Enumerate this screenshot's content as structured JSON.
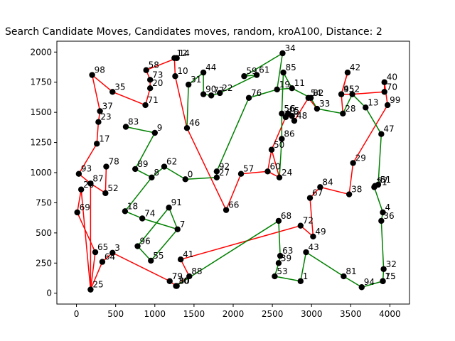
{
  "chart_data": {
    "type": "scatter",
    "title": "Search Candidate Moves, Candidates moves, random, kroA100, Distance: 2",
    "xlabel": "",
    "ylabel": "",
    "xlim": [
      -250,
      4250
    ],
    "ylim": [
      -90,
      2090
    ],
    "xticks": [
      0,
      500,
      1000,
      1500,
      2000,
      2500,
      3000,
      3500,
      4000
    ],
    "yticks": [
      0,
      250,
      500,
      750,
      1000,
      1250,
      1500,
      1750,
      2000
    ],
    "grid": false,
    "legend": "none",
    "colors": {
      "cycle_a": "#ff0000",
      "cycle_b": "#008000",
      "node": "#000000"
    },
    "points": [
      {
        "id": "0",
        "x": 1390,
        "y": 945
      },
      {
        "id": "1",
        "x": 2860,
        "y": 100
      },
      {
        "id": "2",
        "x": 3520,
        "y": 1650
      },
      {
        "id": "3",
        "x": 460,
        "y": 335
      },
      {
        "id": "4",
        "x": 3910,
        "y": 670
      },
      {
        "id": "5",
        "x": 2750,
        "y": 1470
      },
      {
        "id": "6",
        "x": 2700,
        "y": 1490
      },
      {
        "id": "7",
        "x": 1290,
        "y": 530
      },
      {
        "id": "8",
        "x": 960,
        "y": 960
      },
      {
        "id": "9",
        "x": 1000,
        "y": 1330
      },
      {
        "id": "10",
        "x": 1260,
        "y": 1800
      },
      {
        "id": "11",
        "x": 2750,
        "y": 1700
      },
      {
        "id": "12",
        "x": 1250,
        "y": 1950
      },
      {
        "id": "13",
        "x": 3690,
        "y": 1540
      },
      {
        "id": "14",
        "x": 1280,
        "y": 1950
      },
      {
        "id": "15",
        "x": 3910,
        "y": 100
      },
      {
        "id": "16",
        "x": 2670,
        "y": 1460
      },
      {
        "id": "17",
        "x": 260,
        "y": 1240
      },
      {
        "id": "18",
        "x": 620,
        "y": 680
      },
      {
        "id": "19",
        "x": 2560,
        "y": 1690
      },
      {
        "id": "20",
        "x": 940,
        "y": 1700
      },
      {
        "id": "21",
        "x": 3800,
        "y": 880
      },
      {
        "id": "22",
        "x": 1830,
        "y": 1660
      },
      {
        "id": "23",
        "x": 280,
        "y": 1420
      },
      {
        "id": "24",
        "x": 2590,
        "y": 960
      },
      {
        "id": "25",
        "x": 180,
        "y": 30
      },
      {
        "id": "26",
        "x": 60,
        "y": 860
      },
      {
        "id": "27",
        "x": 1790,
        "y": 960
      },
      {
        "id": "28",
        "x": 3400,
        "y": 1490
      },
      {
        "id": "29",
        "x": 3530,
        "y": 1080
      },
      {
        "id": "30",
        "x": 1270,
        "y": 60
      },
      {
        "id": "31",
        "x": 1430,
        "y": 1730
      },
      {
        "id": "32",
        "x": 3920,
        "y": 200
      },
      {
        "id": "33",
        "x": 3070,
        "y": 1530
      },
      {
        "id": "34",
        "x": 2630,
        "y": 1990
      },
      {
        "id": "35",
        "x": 460,
        "y": 1670
      },
      {
        "id": "36",
        "x": 3890,
        "y": 600
      },
      {
        "id": "37",
        "x": 300,
        "y": 1510
      },
      {
        "id": "38",
        "x": 3480,
        "y": 820
      },
      {
        "id": "39",
        "x": 2580,
        "y": 250
      },
      {
        "id": "40",
        "x": 3930,
        "y": 1750
      },
      {
        "id": "41",
        "x": 1330,
        "y": 280
      },
      {
        "id": "42",
        "x": 3460,
        "y": 1830
      },
      {
        "id": "43",
        "x": 2930,
        "y": 340
      },
      {
        "id": "44",
        "x": 1620,
        "y": 1830
      },
      {
        "id": "45",
        "x": 3380,
        "y": 1650
      },
      {
        "id": "46",
        "x": 1410,
        "y": 1370
      },
      {
        "id": "47",
        "x": 3890,
        "y": 1320
      },
      {
        "id": "48",
        "x": 2780,
        "y": 1430
      },
      {
        "id": "49",
        "x": 3020,
        "y": 470
      },
      {
        "id": "50",
        "x": 2490,
        "y": 1190
      },
      {
        "id": "51",
        "x": 3850,
        "y": 900
      },
      {
        "id": "52",
        "x": 370,
        "y": 830
      },
      {
        "id": "53",
        "x": 2530,
        "y": 140
      },
      {
        "id": "54",
        "x": 2960,
        "y": 1620
      },
      {
        "id": "55",
        "x": 950,
        "y": 270
      },
      {
        "id": "56",
        "x": 2620,
        "y": 1490
      },
      {
        "id": "57",
        "x": 2100,
        "y": 990
      },
      {
        "id": "58",
        "x": 890,
        "y": 1850
      },
      {
        "id": "59",
        "x": 2140,
        "y": 1800
      },
      {
        "id": "60",
        "x": 2440,
        "y": 1010
      },
      {
        "id": "61",
        "x": 2300,
        "y": 1810
      },
      {
        "id": "62",
        "x": 1120,
        "y": 1050
      },
      {
        "id": "63",
        "x": 2600,
        "y": 310
      },
      {
        "id": "64",
        "x": 330,
        "y": 260
      },
      {
        "id": "65",
        "x": 240,
        "y": 340
      },
      {
        "id": "66",
        "x": 1910,
        "y": 690
      },
      {
        "id": "67",
        "x": 2980,
        "y": 790
      },
      {
        "id": "68",
        "x": 2580,
        "y": 600
      },
      {
        "id": "69",
        "x": 10,
        "y": 670
      },
      {
        "id": "70",
        "x": 3930,
        "y": 1670
      },
      {
        "id": "71",
        "x": 880,
        "y": 1560
      },
      {
        "id": "72",
        "x": 2860,
        "y": 560
      },
      {
        "id": "73",
        "x": 940,
        "y": 1770
      },
      {
        "id": "74",
        "x": 840,
        "y": 620
      },
      {
        "id": "75",
        "x": 3910,
        "y": 100
      },
      {
        "id": "76",
        "x": 2200,
        "y": 1620
      },
      {
        "id": "77",
        "x": 1720,
        "y": 1640
      },
      {
        "id": "78",
        "x": 380,
        "y": 1050
      },
      {
        "id": "79",
        "x": 1190,
        "y": 100
      },
      {
        "id": "80",
        "x": 1280,
        "y": 60
      },
      {
        "id": "81",
        "x": 3410,
        "y": 140
      },
      {
        "id": "82",
        "x": 2990,
        "y": 1620
      },
      {
        "id": "83",
        "x": 630,
        "y": 1380
      },
      {
        "id": "84",
        "x": 3110,
        "y": 880
      },
      {
        "id": "85",
        "x": 2640,
        "y": 1830
      },
      {
        "id": "86",
        "x": 2620,
        "y": 1280
      },
      {
        "id": "87",
        "x": 180,
        "y": 910
      },
      {
        "id": "88",
        "x": 1440,
        "y": 140
      },
      {
        "id": "89",
        "x": 750,
        "y": 1030
      },
      {
        "id": "90",
        "x": 1620,
        "y": 1650
      },
      {
        "id": "91",
        "x": 1180,
        "y": 710
      },
      {
        "id": "92",
        "x": 1790,
        "y": 1010
      },
      {
        "id": "93",
        "x": 30,
        "y": 990
      },
      {
        "id": "94",
        "x": 3640,
        "y": 50
      },
      {
        "id": "95",
        "x": 3380,
        "y": 1650
      },
      {
        "id": "96",
        "x": 780,
        "y": 390
      },
      {
        "id": "97",
        "x": 3810,
        "y": 890
      },
      {
        "id": "98",
        "x": 200,
        "y": 1810
      },
      {
        "id": "99",
        "x": 3970,
        "y": 1560
      }
    ],
    "edges_a": [
      [
        "25",
        "65"
      ],
      [
        "65",
        "69"
      ],
      [
        "69",
        "26"
      ],
      [
        "26",
        "25x"
      ],
      [
        "25x",
        "87"
      ],
      [
        "87",
        "93"
      ],
      [
        "93",
        "17"
      ],
      [
        "17",
        "23"
      ],
      [
        "23",
        "37"
      ],
      [
        "37",
        "98"
      ],
      [
        "98",
        "35"
      ],
      [
        "35",
        "71"
      ],
      [
        "71",
        "20"
      ],
      [
        "20",
        "73"
      ],
      [
        "73",
        "58"
      ],
      [
        "58",
        "14"
      ],
      [
        "14",
        "12"
      ],
      [
        "12",
        "10"
      ],
      [
        "10",
        "46"
      ],
      [
        "46",
        "66"
      ],
      [
        "66",
        "57"
      ],
      [
        "57",
        "60"
      ],
      [
        "60",
        "24"
      ],
      [
        "24",
        "50x"
      ],
      [
        "78",
        "52"
      ],
      [
        "52",
        "87x"
      ],
      [
        "25",
        "64"
      ],
      [
        "64",
        "3"
      ],
      [
        "3",
        "79"
      ],
      [
        "79",
        "30"
      ],
      [
        "30",
        "88"
      ],
      [
        "88",
        "41"
      ],
      [
        "41",
        "72"
      ],
      [
        "72",
        "49"
      ],
      [
        "49",
        "67"
      ],
      [
        "67",
        "84"
      ],
      [
        "84",
        "38"
      ],
      [
        "38",
        "29"
      ],
      [
        "29",
        "99"
      ],
      [
        "99",
        "40"
      ],
      [
        "40",
        "70"
      ],
      [
        "70",
        "2"
      ],
      [
        "2",
        "45"
      ],
      [
        "45",
        "42"
      ],
      [
        "42",
        "95"
      ],
      [
        "95",
        "28x"
      ],
      [
        "33",
        "54"
      ],
      [
        "54",
        "48"
      ],
      [
        "48",
        "5"
      ],
      [
        "5",
        "16"
      ],
      [
        "16",
        "50"
      ],
      [
        "50",
        "60x"
      ]
    ],
    "edges_b": [
      [
        "0",
        "27"
      ],
      [
        "27",
        "92"
      ],
      [
        "92",
        "76"
      ],
      [
        "76",
        "19"
      ],
      [
        "19",
        "34"
      ],
      [
        "34",
        "59"
      ],
      [
        "59",
        "61"
      ],
      [
        "61",
        "22"
      ],
      [
        "22",
        "77"
      ],
      [
        "77",
        "90"
      ],
      [
        "90",
        "44"
      ],
      [
        "44",
        "31"
      ],
      [
        "31",
        "46x"
      ],
      [
        "83",
        "9"
      ],
      [
        "9",
        "89"
      ],
      [
        "89",
        "8"
      ],
      [
        "8",
        "62"
      ],
      [
        "62",
        "0"
      ],
      [
        "8",
        "18"
      ],
      [
        "18",
        "74"
      ],
      [
        "74",
        "7"
      ],
      [
        "7",
        "91"
      ],
      [
        "91",
        "96"
      ],
      [
        "96",
        "55"
      ],
      [
        "55",
        "7x"
      ],
      [
        "19",
        "11"
      ],
      [
        "11",
        "82"
      ],
      [
        "82",
        "33"
      ],
      [
        "33",
        "28"
      ],
      [
        "28",
        "2"
      ],
      [
        "2",
        "13"
      ],
      [
        "13",
        "47"
      ],
      [
        "47",
        "51"
      ],
      [
        "51",
        "21"
      ],
      [
        "21",
        "4"
      ],
      [
        "4",
        "36"
      ],
      [
        "36",
        "32"
      ],
      [
        "32",
        "15"
      ],
      [
        "15",
        "94"
      ],
      [
        "94",
        "81"
      ],
      [
        "81",
        "43"
      ],
      [
        "43",
        "1"
      ],
      [
        "1",
        "53"
      ],
      [
        "53",
        "39"
      ],
      [
        "39",
        "63"
      ],
      [
        "63",
        "68"
      ],
      [
        "68",
        "30x"
      ],
      [
        "24",
        "86"
      ],
      [
        "86",
        "56"
      ],
      [
        "56",
        "85"
      ],
      [
        "85",
        "11x"
      ]
    ]
  }
}
